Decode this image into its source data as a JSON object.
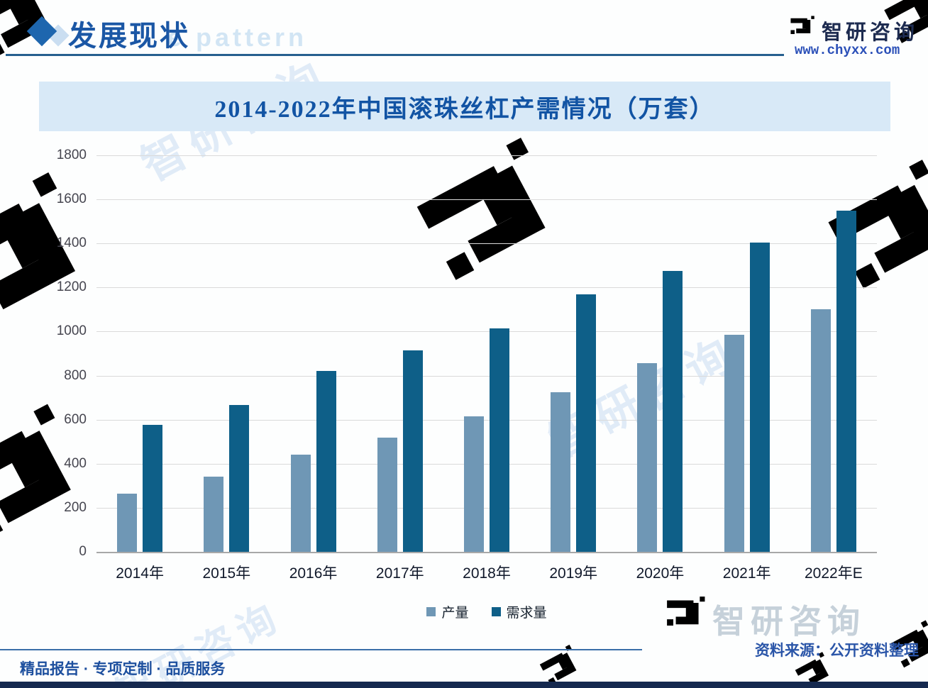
{
  "header": {
    "section_title": "发展现状",
    "watermark_text": "e pattern"
  },
  "brand": {
    "name": "智研咨询",
    "website": "www.chyxx.com"
  },
  "chart_data": {
    "type": "bar",
    "title": "2014-2022年中国滚珠丝杠产需情况（万套）",
    "categories": [
      "2014年",
      "2015年",
      "2016年",
      "2017年",
      "2018年",
      "2019年",
      "2020年",
      "2021年",
      "2022年E"
    ],
    "series": [
      {
        "name": "产量",
        "color": "#6f97b5",
        "values": [
          265,
          340,
          440,
          520,
          615,
          725,
          855,
          985,
          1100
        ]
      },
      {
        "name": "需求量",
        "color": "#0e5f88",
        "values": [
          575,
          665,
          820,
          915,
          1015,
          1170,
          1275,
          1405,
          1550
        ]
      }
    ],
    "xlabel": "",
    "ylabel": "",
    "ylim": [
      0,
      1800
    ],
    "yticks": [
      0,
      200,
      400,
      600,
      800,
      1000,
      1200,
      1400,
      1600,
      1800
    ],
    "grid": true,
    "legend_position": "bottom"
  },
  "footer": {
    "source": "资料来源：公开资料整理",
    "services": "精品报告 · 专项定制 · 品质服务"
  },
  "watermarks": {
    "brand": "智研咨询"
  },
  "colors": {
    "production_bar": "#6f97b5",
    "demand_bar": "#0e5f88",
    "banner_bg": "#d8e9f7",
    "banner_title_text": "#1254a4",
    "header_title_text": "#1b57a5",
    "link_text": "#2b50b8",
    "source_text": "#2a55a8",
    "bottom_strip": "#15294f"
  }
}
